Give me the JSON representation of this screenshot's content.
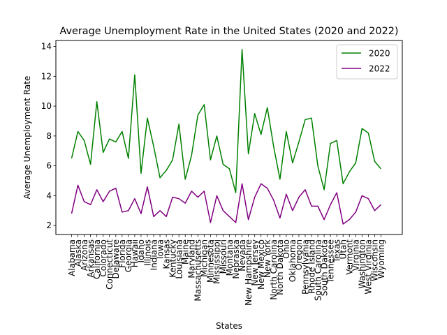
{
  "chart_data": {
    "type": "line",
    "title": "Average Unemployment Rate in the United States (2020 and 2022)",
    "xlabel": "States",
    "ylabel": "Average Unemployment Rate",
    "categories": [
      "Alabama",
      "Alaska",
      "Arizona",
      "Arkansas",
      "California",
      "Colorado",
      "Connecticut",
      "Delaware",
      "Florida",
      "Georgia",
      "Hawaii",
      "Idaho",
      "Illinois",
      "Indiana",
      "Iowa",
      "Kansas",
      "Kentucky",
      "Louisiana",
      "Maine",
      "Maryland",
      "Massachusetts",
      "Michigan",
      "Minnesota",
      "Mississippi",
      "Missouri",
      "Montana",
      "Nebraska",
      "Nevada",
      "New Hampshire",
      "New Jersey",
      "New Mexico",
      "New York",
      "North Carolina",
      "North Dakota",
      "Ohio",
      "Oklahoma",
      "Oregon",
      "Pennsylvania",
      "Rhode Island",
      "South Carolina",
      "South Dakota",
      "Tennessee",
      "Texas",
      "Utah",
      "Vermont",
      "Virginia",
      "Washington",
      "West Virginia",
      "Wisconsin",
      "Wyoming"
    ],
    "ylim": [
      1.4,
      14.4
    ],
    "yticks": [
      2,
      4,
      6,
      8,
      10,
      12,
      14
    ],
    "grid": false,
    "legend": "top-right",
    "series": [
      {
        "name": "2020",
        "color": "#008000",
        "values": [
          6.5,
          8.3,
          7.7,
          6.1,
          10.3,
          6.9,
          7.8,
          7.6,
          8.3,
          6.5,
          12.1,
          5.5,
          9.2,
          7.3,
          5.2,
          5.7,
          6.4,
          8.8,
          5.1,
          6.7,
          9.4,
          10.1,
          6.4,
          8.0,
          6.1,
          5.8,
          4.2,
          13.8,
          6.8,
          9.5,
          8.1,
          9.9,
          7.3,
          5.1,
          8.3,
          6.2,
          7.6,
          9.1,
          9.2,
          6.0,
          4.4,
          7.5,
          7.7,
          4.8,
          5.6,
          6.2,
          8.5,
          8.2,
          6.3,
          5.8
        ]
      },
      {
        "name": "2022",
        "color": "#800080",
        "values": [
          2.8,
          4.7,
          3.6,
          3.4,
          4.4,
          3.6,
          4.3,
          4.5,
          2.9,
          3.0,
          3.8,
          2.8,
          4.6,
          2.6,
          3.0,
          2.6,
          3.9,
          3.8,
          3.5,
          4.3,
          3.9,
          4.3,
          2.2,
          4.0,
          3.0,
          2.6,
          2.2,
          4.8,
          2.4,
          3.9,
          4.8,
          4.5,
          3.7,
          2.5,
          4.1,
          3.0,
          3.9,
          4.4,
          3.3,
          3.3,
          2.4,
          3.4,
          4.2,
          2.1,
          2.4,
          2.9,
          4.0,
          3.8,
          3.0,
          3.4
        ]
      }
    ]
  }
}
